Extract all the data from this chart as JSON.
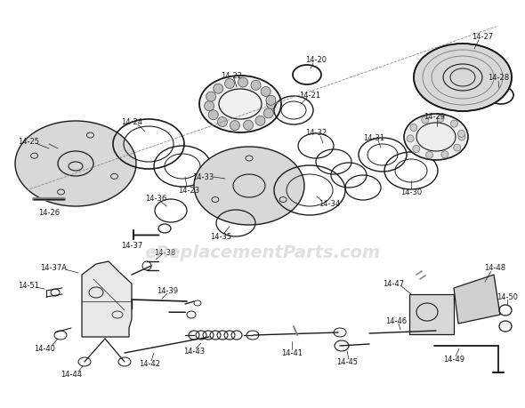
{
  "bg_color": "#ffffff",
  "watermark": "eReplacementParts.com",
  "wm_color": "#bbbbbb",
  "wm_alpha": 0.45,
  "tc": "#1a1a1a",
  "lc": "#1a1a1a",
  "fs": 6.0,
  "fig_w": 5.9,
  "fig_h": 4.6,
  "dpi": 100
}
